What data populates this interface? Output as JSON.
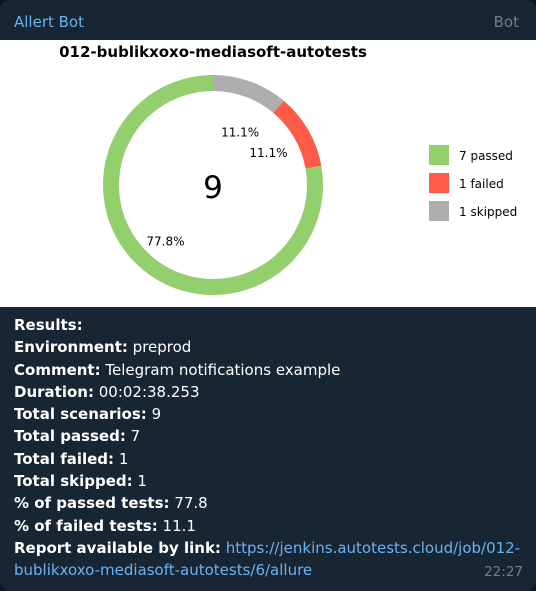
{
  "sender": "Allert Bot",
  "sender_tag": "Bot",
  "time": "22:27",
  "chart_data": {
    "type": "pie",
    "title": "012-bublikxoxo-mediasoft-autotests",
    "center_label": "9",
    "slices": [
      {
        "label": "passed",
        "value": 7,
        "percent_label": "77.8%",
        "color": "#94cf6e"
      },
      {
        "label": "failed",
        "value": 1,
        "percent_label": "11.1%",
        "color": "#fd5a47"
      },
      {
        "label": "skipped",
        "value": 1,
        "percent_label": "11.1%",
        "color": "#aeaeae"
      }
    ],
    "legend": [
      "7 passed",
      "1 failed",
      "1 skipped"
    ],
    "legend_position": "right"
  },
  "report": {
    "results_label": "Results:",
    "lines": [
      {
        "label": "Environment:",
        "value": "preprod"
      },
      {
        "label": "Comment:",
        "value": "Telegram notifications example"
      },
      {
        "label": "Duration:",
        "value": "00:02:38.253"
      },
      {
        "label": "Total scenarios:",
        "value": "9"
      },
      {
        "label": "Total passed:",
        "value": "7"
      },
      {
        "label": "Total failed:",
        "value": "1"
      },
      {
        "label": "Total skipped:",
        "value": "1"
      },
      {
        "label": "% of passed tests:",
        "value": "77.8"
      },
      {
        "label": "% of failed tests:",
        "value": "11.1"
      }
    ],
    "link_label": "Report available by link:",
    "link_url": "https://jenkins.autotests.cloud/job/012-bublikxoxo-mediasoft-autotests/6/allure"
  }
}
